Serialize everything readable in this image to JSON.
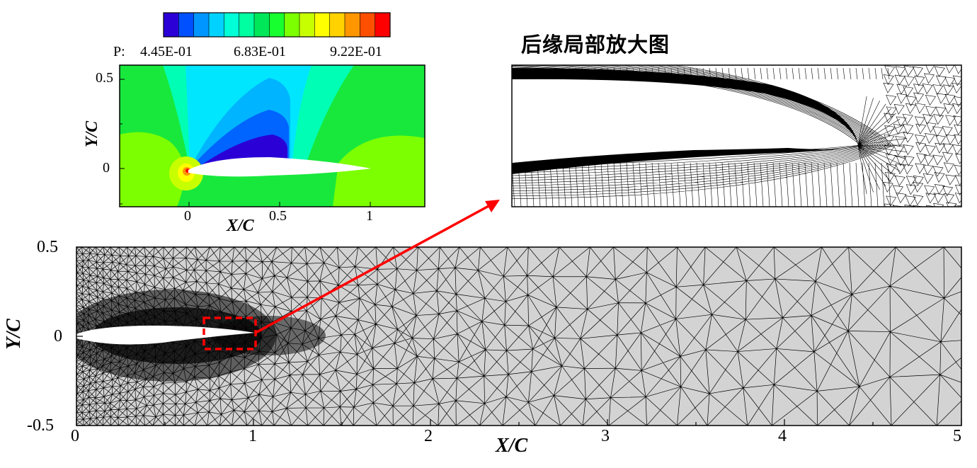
{
  "contour_figure": {
    "legend": {
      "variable_label": "P:",
      "labels": [
        "4.45E-01",
        "6.83E-01",
        "9.22E-01"
      ],
      "colors": [
        "#2a00d6",
        "#0050ff",
        "#0096ff",
        "#00d2ff",
        "#00ffd7",
        "#00ffa0",
        "#00e85a",
        "#18ff30",
        "#7cff00",
        "#c8ff00",
        "#ffff00",
        "#ffd200",
        "#ff9600",
        "#ff5000",
        "#ff0000"
      ]
    },
    "x_title": "X/C",
    "y_title": "Y/C",
    "x_ticks": [
      "0",
      "0.5",
      "1"
    ],
    "y_ticks": [
      "0.5",
      "0"
    ]
  },
  "zoom_figure": {
    "title": "后缘局部放大图"
  },
  "mesh_figure": {
    "x_title": "X/C",
    "y_title": "Y/C",
    "x_ticks": [
      "0",
      "1",
      "2",
      "3",
      "4",
      "5"
    ],
    "y_ticks": [
      "0.5",
      "0",
      "-0.5"
    ]
  },
  "colors": {
    "highlight_box": "#ff0000",
    "arrow": "#ff0000",
    "mesh_fill": "#d3d3d3",
    "mesh_line": "#000000"
  },
  "chart_data": {
    "type": "table",
    "x_range": [
      0,
      5
    ],
    "y_range": [
      -0.5,
      0.5
    ],
    "contour_x_range": [
      -0.4,
      1.3
    ],
    "contour_y_range": [
      -0.2,
      0.55
    ],
    "pressure_range": [
      0.445,
      0.922
    ],
    "highlight_region_x": [
      0.72,
      1.02
    ],
    "highlight_region_y": [
      -0.07,
      0.07
    ]
  }
}
